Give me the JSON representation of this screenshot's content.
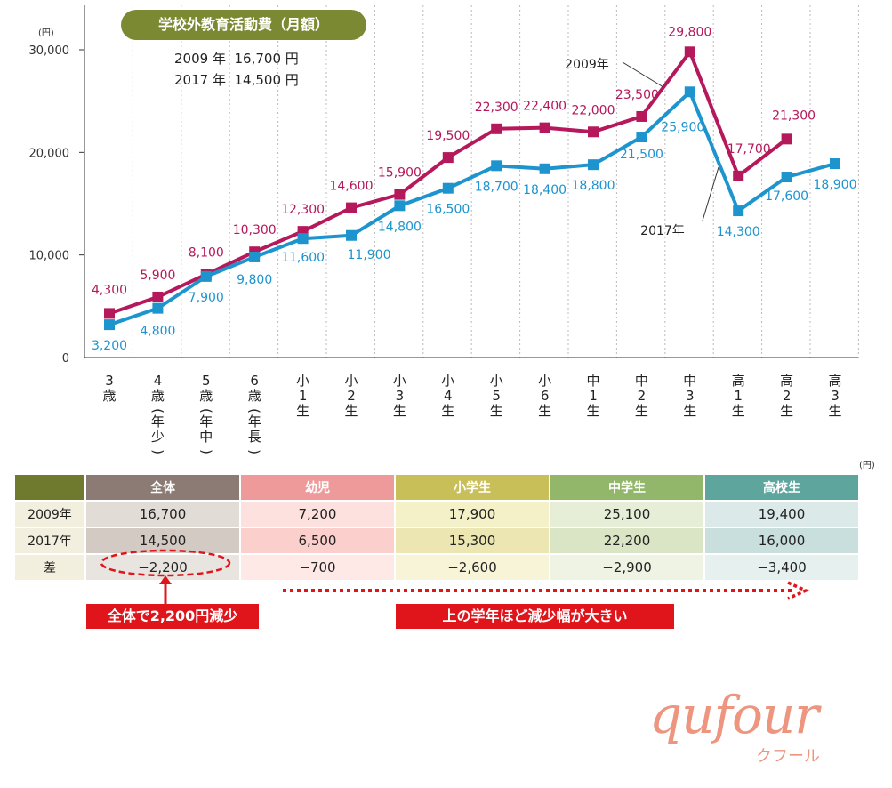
{
  "chart_data": {
    "type": "line",
    "unit": "(円)",
    "ylim": [
      0,
      30000
    ],
    "y_ticks": [
      "0",
      "10,000",
      "20,000",
      "30,000"
    ],
    "y_tick_values": [
      0,
      10000,
      20000,
      30000
    ],
    "categories": [
      "3歳",
      "4歳(年少)",
      "5歳(年中)",
      "6歳(年長)",
      "小1生",
      "小2生",
      "小3生",
      "小4生",
      "小5生",
      "小6生",
      "中1生",
      "中2生",
      "中3生",
      "高1生",
      "高2生",
      "高3生"
    ],
    "category_labels": [
      [
        "3",
        "歳"
      ],
      [
        "4",
        "歳",
        "(",
        "年",
        "少",
        ")"
      ],
      [
        "5",
        "歳",
        "(",
        "年",
        "中",
        ")"
      ],
      [
        "6",
        "歳",
        "(",
        "年",
        "長",
        ")"
      ],
      [
        "小",
        "1",
        "生"
      ],
      [
        "小",
        "2",
        "生"
      ],
      [
        "小",
        "3",
        "生"
      ],
      [
        "小",
        "4",
        "生"
      ],
      [
        "小",
        "5",
        "生"
      ],
      [
        "小",
        "6",
        "生"
      ],
      [
        "中",
        "1",
        "生"
      ],
      [
        "中",
        "2",
        "生"
      ],
      [
        "中",
        "3",
        "生"
      ],
      [
        "高",
        "1",
        "生"
      ],
      [
        "高",
        "2",
        "生"
      ],
      [
        "高",
        "3",
        "生"
      ]
    ],
    "series": [
      {
        "name": "2009年",
        "color": "#b5185b",
        "values": [
          4300,
          5900,
          8100,
          10300,
          12300,
          14600,
          15900,
          19500,
          22300,
          22400,
          22000,
          23500,
          29800,
          17700,
          21300,
          null
        ],
        "labels": [
          "4,300",
          "5,900",
          "8,100",
          "10,300",
          "12,300",
          "14,600",
          "15,900",
          "19,500",
          "22,300",
          "22,400",
          "22,000",
          "23,500",
          "29,800",
          "17,700",
          "21,300",
          null
        ]
      },
      {
        "name": "2017年",
        "color": "#1e94cf",
        "values": [
          3200,
          4800,
          7900,
          9800,
          11600,
          11900,
          14800,
          16500,
          18700,
          18400,
          18800,
          21500,
          25900,
          14300,
          17600,
          18900
        ],
        "labels": [
          "3,200",
          "4,800",
          "7,900",
          "9,800",
          "11,600",
          "11,900",
          "14,800",
          "16,500",
          "18,700",
          "18,400",
          "18,800",
          "21,500",
          "25,900",
          "14,300",
          "17,600",
          "18,900"
        ]
      }
    ],
    "title": "学校外教育活動費（月額）",
    "averages": [
      {
        "year": "2009 年",
        "value": "16,700 円"
      },
      {
        "year": "2017 年",
        "value": "14,500 円"
      }
    ]
  },
  "table": {
    "unit": "(円)",
    "headers": [
      "全体",
      "幼児",
      "小学生",
      "中学生",
      "高校生"
    ],
    "header_colors": [
      "#8c7b74",
      "#ee9a9a",
      "#c9bf58",
      "#93b76a",
      "#5da59d"
    ],
    "row1_colors": [
      "#e1dcd5",
      "#fde1de",
      "#f4f0c8",
      "#e6eed7",
      "#dbeae9"
    ],
    "row2_colors": [
      "#d2cac3",
      "#fbd0cc",
      "#ece6b2",
      "#d9e5c4",
      "#c8dfdd"
    ],
    "row3_colors": [
      "#e8e4df",
      "#fee9e7",
      "#f7f4d8",
      "#eef3e4",
      "#e5f0ef"
    ],
    "rows": [
      {
        "label": "2009年",
        "values": [
          "16,700",
          "7,200",
          "17,900",
          "25,100",
          "19,400"
        ]
      },
      {
        "label": "2017年",
        "values": [
          "14,500",
          "6,500",
          "15,300",
          "22,200",
          "16,000"
        ]
      },
      {
        "label": "差",
        "values": [
          "−2,200",
          "−700",
          "−2,600",
          "−2,900",
          "−3,400"
        ]
      }
    ]
  },
  "callouts": {
    "left": "全体で2,200円減少",
    "right": "上の学年ほど減少幅が大きい"
  },
  "logo": {
    "main": "qufour",
    "sub": "クフール"
  }
}
